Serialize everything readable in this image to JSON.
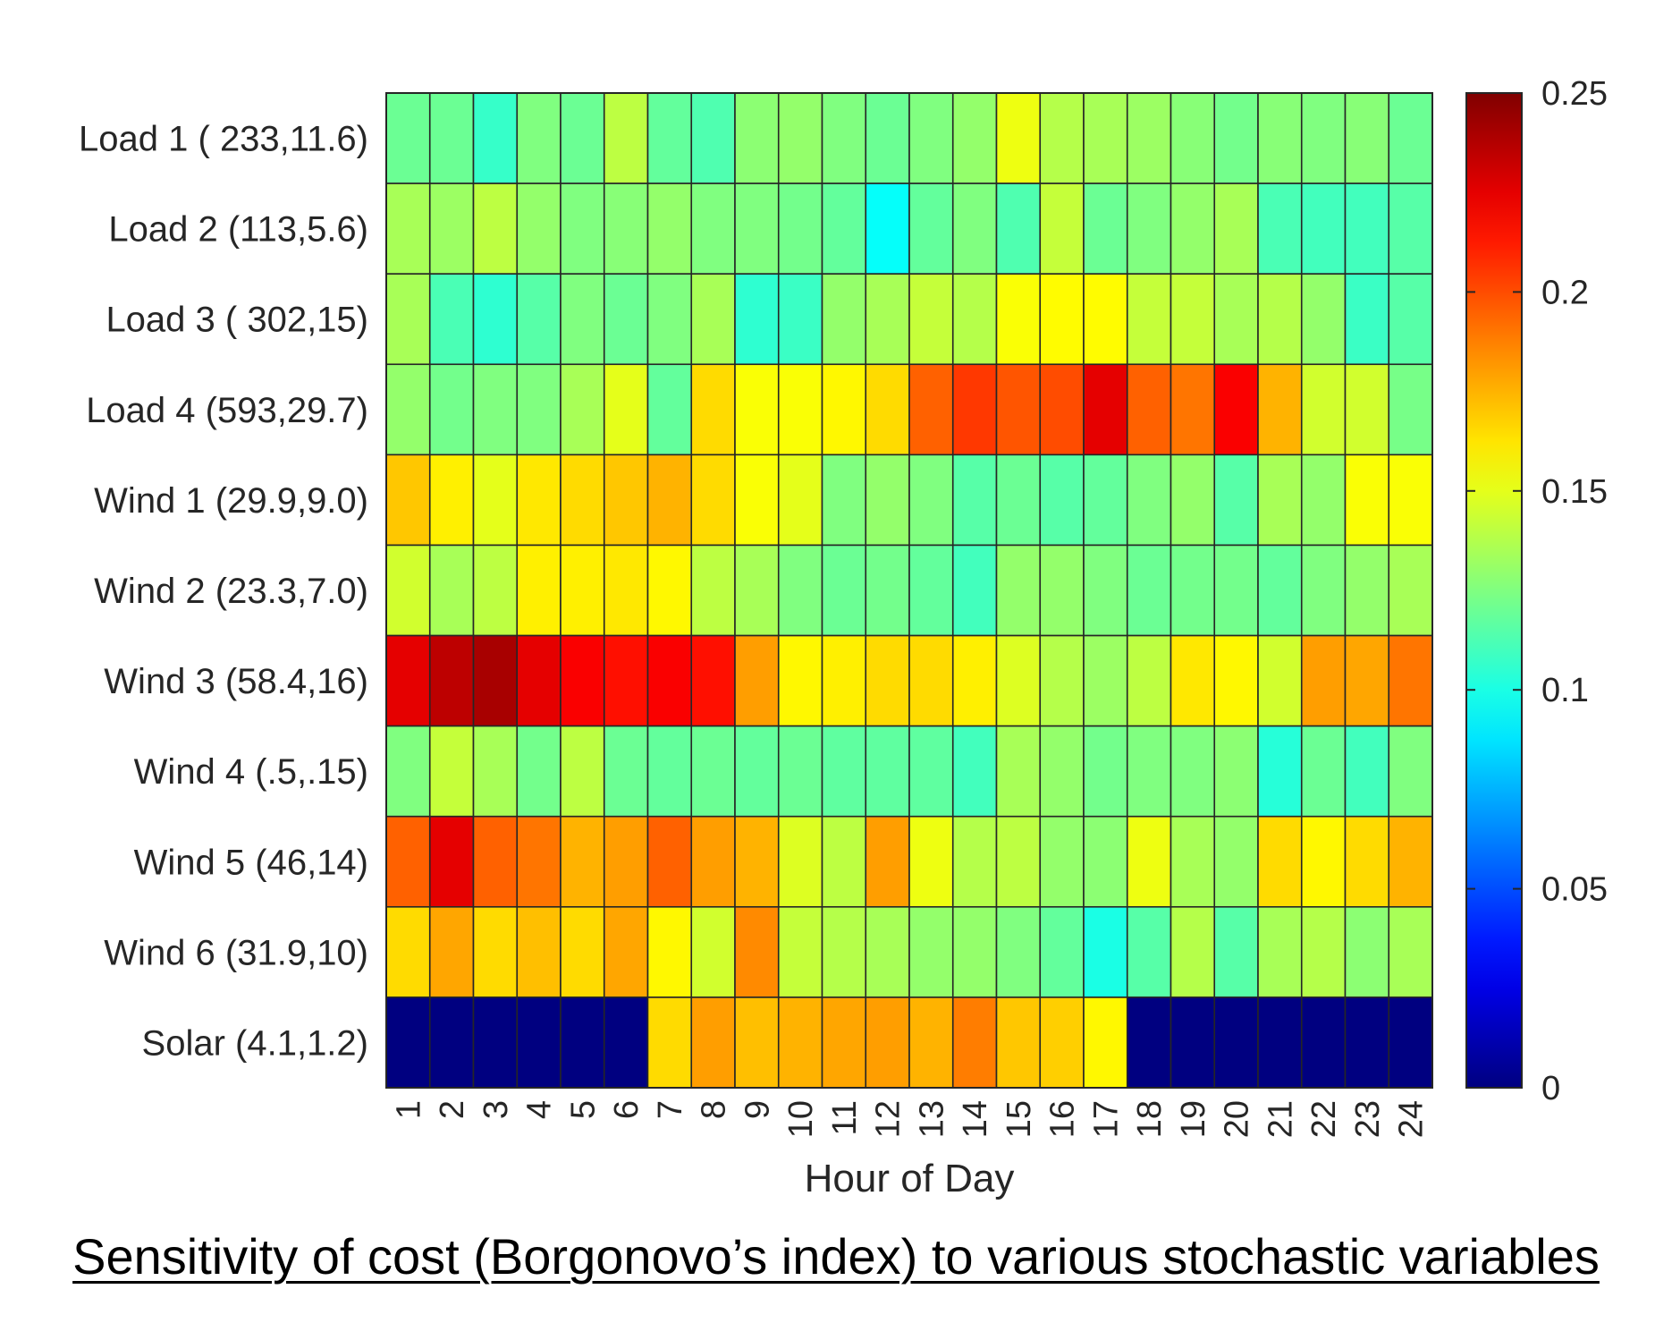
{
  "chart_data": {
    "type": "heatmap",
    "xlabel": "Hour of Day",
    "x": [
      "1",
      "2",
      "3",
      "4",
      "5",
      "6",
      "7",
      "8",
      "9",
      "10",
      "11",
      "12",
      "13",
      "14",
      "15",
      "16",
      "17",
      "18",
      "19",
      "20",
      "21",
      "22",
      "23",
      "24"
    ],
    "y": [
      "Load 1 ( 233,11.6)",
      "Load 2 (113,5.6)",
      "Load 3 ( 302,15)",
      "Load 4 (593,29.7)",
      "Wind 1 (29.9,9.0)",
      "Wind 2 (23.3,7.0)",
      "Wind 3 (58.4,16)",
      "Wind 4 (.5,.15)",
      "Wind 5 (46,14)",
      "Wind 6 (31.9,10)",
      "Solar (4.1,1.2)"
    ],
    "values": [
      [
        0.12,
        0.12,
        0.107,
        0.125,
        0.12,
        0.14,
        0.118,
        0.113,
        0.128,
        0.13,
        0.125,
        0.12,
        0.125,
        0.13,
        0.152,
        0.138,
        0.135,
        0.132,
        0.127,
        0.122,
        0.127,
        0.125,
        0.127,
        0.12
      ],
      [
        0.135,
        0.132,
        0.14,
        0.13,
        0.125,
        0.127,
        0.13,
        0.125,
        0.125,
        0.122,
        0.118,
        0.095,
        0.118,
        0.125,
        0.113,
        0.142,
        0.12,
        0.125,
        0.13,
        0.135,
        0.112,
        0.11,
        0.11,
        0.115
      ],
      [
        0.135,
        0.112,
        0.105,
        0.115,
        0.125,
        0.12,
        0.125,
        0.135,
        0.105,
        0.108,
        0.13,
        0.135,
        0.142,
        0.138,
        0.155,
        0.157,
        0.157,
        0.142,
        0.142,
        0.135,
        0.138,
        0.13,
        0.108,
        0.115
      ],
      [
        0.13,
        0.122,
        0.125,
        0.125,
        0.135,
        0.15,
        0.118,
        0.165,
        0.155,
        0.155,
        0.158,
        0.165,
        0.195,
        0.205,
        0.198,
        0.2,
        0.225,
        0.195,
        0.19,
        0.22,
        0.175,
        0.145,
        0.145,
        0.123
      ],
      [
        0.17,
        0.16,
        0.15,
        0.162,
        0.165,
        0.17,
        0.175,
        0.165,
        0.155,
        0.15,
        0.125,
        0.13,
        0.125,
        0.115,
        0.12,
        0.115,
        0.118,
        0.125,
        0.13,
        0.115,
        0.135,
        0.13,
        0.155,
        0.155
      ],
      [
        0.145,
        0.135,
        0.14,
        0.16,
        0.16,
        0.162,
        0.158,
        0.14,
        0.135,
        0.125,
        0.12,
        0.122,
        0.118,
        0.11,
        0.13,
        0.13,
        0.125,
        0.12,
        0.122,
        0.122,
        0.118,
        0.125,
        0.13,
        0.135
      ],
      [
        0.225,
        0.235,
        0.24,
        0.225,
        0.22,
        0.215,
        0.22,
        0.215,
        0.18,
        0.158,
        0.16,
        0.165,
        0.165,
        0.16,
        0.148,
        0.138,
        0.132,
        0.14,
        0.162,
        0.158,
        0.145,
        0.18,
        0.178,
        0.19
      ],
      [
        0.125,
        0.142,
        0.135,
        0.122,
        0.14,
        0.12,
        0.118,
        0.12,
        0.118,
        0.12,
        0.117,
        0.117,
        0.117,
        0.11,
        0.135,
        0.13,
        0.122,
        0.125,
        0.125,
        0.128,
        0.103,
        0.12,
        0.11,
        0.125
      ],
      [
        0.195,
        0.225,
        0.195,
        0.19,
        0.175,
        0.18,
        0.195,
        0.18,
        0.175,
        0.148,
        0.14,
        0.18,
        0.152,
        0.138,
        0.14,
        0.13,
        0.128,
        0.152,
        0.135,
        0.13,
        0.165,
        0.158,
        0.165,
        0.175
      ],
      [
        0.165,
        0.178,
        0.165,
        0.172,
        0.165,
        0.178,
        0.158,
        0.145,
        0.185,
        0.142,
        0.138,
        0.135,
        0.13,
        0.13,
        0.125,
        0.118,
        0.1,
        0.115,
        0.138,
        0.115,
        0.135,
        0.138,
        0.128,
        0.135
      ],
      [
        0,
        0,
        0,
        0,
        0,
        0,
        0.165,
        0.18,
        0.172,
        0.175,
        0.178,
        0.18,
        0.175,
        0.188,
        0.17,
        0.168,
        0.158,
        0,
        0,
        0,
        0,
        0,
        0,
        0
      ]
    ],
    "colorbar": {
      "min": 0,
      "max": 0.25,
      "ticks": [
        "0",
        "0.05",
        "0.1",
        "0.15",
        "0.2",
        "0.25"
      ],
      "colormap": "jet"
    },
    "caption": "Sensitivity of cost (Borgonovo’s index) to various stochastic variables"
  }
}
